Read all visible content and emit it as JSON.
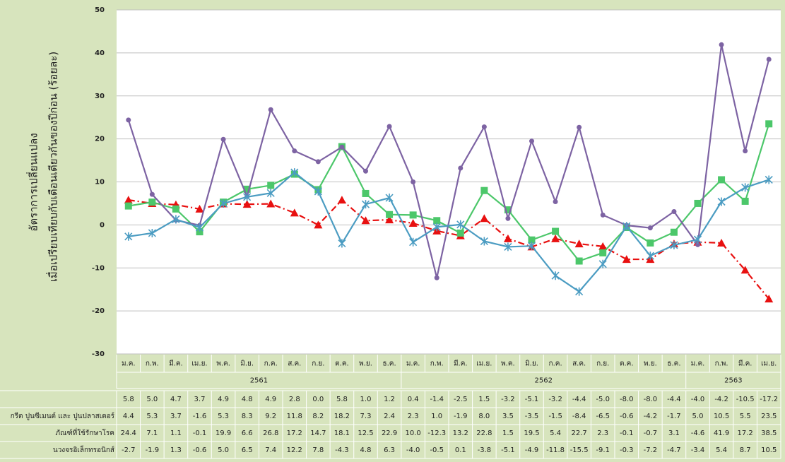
{
  "chart_data": {
    "type": "line",
    "y_title_lines": [
      "อัตราการเปลี่ยนแปลง",
      "เมื่อเปรียบเทียบกับเดือนเดียวกันของปีก่อน (ร้อยละ)"
    ],
    "categories": [
      "ม.ค.",
      "ก.พ.",
      "มี.ค.",
      "เม.ย.",
      "พ.ค.",
      "มิ.ย.",
      "ก.ค.",
      "ส.ค.",
      "ก.ย.",
      "ต.ค.",
      "พ.ย.",
      "ธ.ค.",
      "ม.ค.",
      "ก.พ.",
      "มี.ค.",
      "เม.ย.",
      "พ.ค.",
      "มิ.ย.",
      "ก.ค.",
      "ส.ค.",
      "ก.ย.",
      "ต.ค.",
      "พ.ย.",
      "ธ.ค.",
      "ม.ค.",
      "ก.พ.",
      "มี.ค.",
      "เม.ย."
    ],
    "years": [
      "2561",
      "2562",
      "2563"
    ],
    "ylim": [
      -30,
      50
    ],
    "yticks": [
      -30,
      -20,
      -10,
      0,
      10,
      20,
      30,
      40,
      50
    ],
    "grid": true,
    "series": [
      {
        "color": "#e81010",
        "marker": "triangle",
        "dash": true,
        "values": [
          5.8,
          5.0,
          4.7,
          3.7,
          4.9,
          4.8,
          4.9,
          2.8,
          0.0,
          5.8,
          1.0,
          1.2,
          0.4,
          -1.4,
          -2.5,
          1.5,
          -3.2,
          -5.1,
          -3.2,
          -4.4,
          -5.0,
          -8.0,
          -8.0,
          -4.4,
          -4.0,
          -4.2,
          -10.5,
          -17.2
        ],
        "value_labels": [
          "5.8",
          "5.0",
          "4.7",
          "3.7",
          "4.9",
          "4.8",
          "4.9",
          "2.8",
          "0.0",
          "5.8",
          "1.0",
          "1.2",
          "0.4",
          "-1.4",
          "-2.5",
          "1.5",
          "-3.2",
          "-5.1",
          "-3.2",
          "-4.4",
          "-5.0",
          "-8.0",
          "-8.0",
          "-4.4",
          "-4.0",
          "-4.2",
          "-10.5",
          "-17.2"
        ]
      },
      {
        "name": "กรีต ปูนซีเมนต์ และ ปูนปลาสเตอร์",
        "color": "#4cc76a",
        "marker": "square",
        "values": [
          4.4,
          5.3,
          3.7,
          -1.6,
          5.3,
          8.3,
          9.2,
          11.8,
          8.2,
          18.2,
          7.3,
          2.4,
          2.3,
          1.0,
          -1.9,
          8.0,
          3.5,
          -3.5,
          -1.5,
          -8.4,
          -6.5,
          -0.6,
          -4.2,
          -1.7,
          5.0,
          10.5,
          5.5,
          23.5
        ],
        "value_labels": [
          "4.4",
          "5.3",
          "3.7",
          "-1.6",
          "5.3",
          "8.3",
          "9.2",
          "11.8",
          "8.2",
          "18.2",
          "7.3",
          "2.4",
          "2.3",
          "1.0",
          "-1.9",
          "8.0",
          "3.5",
          "-3.5",
          "-1.5",
          "-8.4",
          "-6.5",
          "-0.6",
          "-4.2",
          "-1.7",
          "5.0",
          "10.5",
          "5.5",
          "23.5"
        ]
      },
      {
        "name": "ภัณฑ์ที่ใช้รักษาโรค",
        "color": "#7d63a3",
        "marker": "circle",
        "values": [
          24.4,
          7.1,
          1.1,
          -0.1,
          19.9,
          6.6,
          26.8,
          17.2,
          14.7,
          18.1,
          12.5,
          22.9,
          10.0,
          -12.3,
          13.2,
          22.8,
          1.5,
          19.5,
          5.4,
          22.7,
          2.3,
          -0.1,
          -0.7,
          3.1,
          -4.6,
          41.9,
          17.2,
          38.5
        ],
        "value_labels": [
          "24.4",
          "7.1",
          "1.1",
          "-0.1",
          "19.9",
          "6.6",
          "26.8",
          "17.2",
          "14.7",
          "18.1",
          "12.5",
          "22.9",
          "10.0",
          "-12.3",
          "13.2",
          "22.8",
          "1.5",
          "19.5",
          "5.4",
          "22.7",
          "2.3",
          "-0.1",
          "-0.7",
          "3.1",
          "-4.6",
          "41.9",
          "17.2",
          "38.5"
        ]
      },
      {
        "name": "นวงจรอิเล็กทรอนิกส์",
        "color": "#4b9cc2",
        "marker": "star",
        "values": [
          -2.7,
          -1.9,
          1.3,
          -0.6,
          5.0,
          6.5,
          7.4,
          12.2,
          7.8,
          -4.3,
          4.8,
          6.3,
          -4.0,
          -0.5,
          0.1,
          -3.8,
          -5.1,
          -4.9,
          -11.8,
          -15.5,
          -9.1,
          -0.3,
          -7.2,
          -4.7,
          -3.4,
          5.4,
          8.7,
          10.5
        ],
        "value_labels": [
          "-2.7",
          "-1.9",
          "1.3",
          "-0.6",
          "5.0",
          "6.5",
          "7.4",
          "12.2",
          "7.8",
          "-4.3",
          "4.8",
          "6.3",
          "-4.0",
          "-0.5",
          "0.1",
          "-3.8",
          "-5.1",
          "-4.9",
          "-11.8",
          "-15.5",
          "-9.1",
          "-0.3",
          "-7.2",
          "-4.7",
          "-3.4",
          "5.4",
          "8.7",
          "10.5"
        ]
      }
    ]
  }
}
